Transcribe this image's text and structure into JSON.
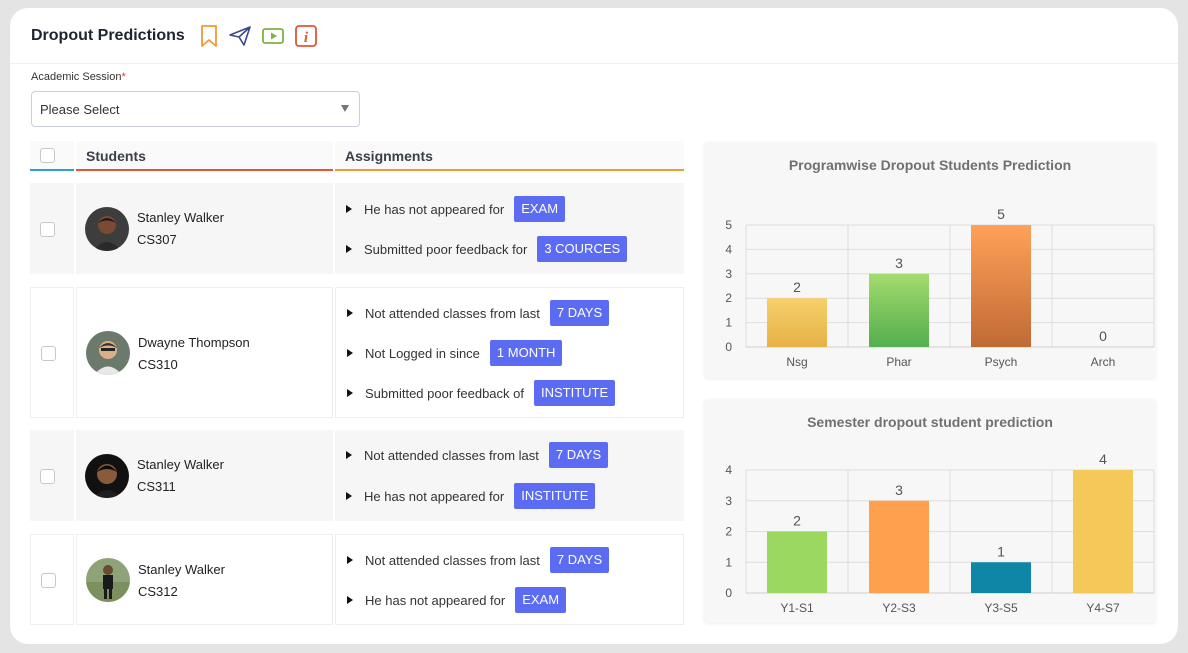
{
  "header": {
    "title": "Dropout Predictions",
    "icons": [
      "bookmark-icon",
      "send-icon",
      "video-play-icon",
      "info-icon"
    ],
    "icon_colors": {
      "bookmark": "#f29a2e",
      "send": "#3a4a8a",
      "video": "#7cb342",
      "info": "#e25635"
    }
  },
  "filter": {
    "label": "Academic Session",
    "required_mark": "*",
    "value": "Please Select"
  },
  "table": {
    "columns": [
      "Students",
      "Assignments"
    ],
    "rows": [
      {
        "name": "Stanley Walker",
        "id": "CS307",
        "items": [
          {
            "text": "He has not appeared for",
            "badge": "EXAM"
          },
          {
            "text": "Submitted poor feedback for",
            "badge": "3 COURCES"
          }
        ]
      },
      {
        "name": "Dwayne Thompson",
        "id": "CS310",
        "items": [
          {
            "text": "Not attended classes from last",
            "badge": "7 DAYS"
          },
          {
            "text": "Not Logged in since",
            "badge": "1 MONTH"
          },
          {
            "text": "Submitted poor feedback of",
            "badge": "INSTITUTE"
          }
        ]
      },
      {
        "name": "Stanley Walker",
        "id": "CS311",
        "items": [
          {
            "text": "Not attended classes from last",
            "badge": "7 DAYS"
          },
          {
            "text": "He has not appeared for",
            "badge": "INSTITUTE"
          }
        ]
      },
      {
        "name": "Stanley Walker",
        "id": "CS312",
        "items": [
          {
            "text": "Not attended classes from last",
            "badge": "7 DAYS"
          },
          {
            "text": "He has not appeared for",
            "badge": "EXAM"
          }
        ]
      }
    ]
  },
  "chart_data": [
    {
      "type": "bar",
      "title": "Programwise Dropout Students Prediction",
      "categories": [
        "Nsg",
        "Phar",
        "Psych",
        "Arch"
      ],
      "values": [
        2,
        3,
        5,
        0
      ],
      "ylim": [
        0,
        5
      ],
      "yticks": [
        0,
        1,
        2,
        3,
        4,
        5
      ],
      "grid": true,
      "colors": [
        [
          "#f5d06a",
          "#e7b247"
        ],
        [
          "#a3dc6e",
          "#55ae4f"
        ],
        [
          "#ffa158",
          "#c06a36"
        ],
        [
          "#f5c15b",
          "#e0a23f"
        ]
      ]
    },
    {
      "type": "bar",
      "title": "Semester dropout student prediction",
      "categories": [
        "Y1-S1",
        "Y2-S3",
        "Y3-S5",
        "Y4-S7"
      ],
      "values": [
        2,
        3,
        1,
        4
      ],
      "ylim": [
        0,
        4
      ],
      "yticks": [
        0,
        1,
        2,
        3,
        4
      ],
      "grid": true,
      "colors": [
        [
          "#9bd860",
          "#9bd860"
        ],
        [
          "#ffa04e",
          "#ffa04e"
        ],
        [
          "#0f86a6",
          "#0f86a6"
        ],
        [
          "#f5c85a",
          "#f5c85a"
        ]
      ]
    }
  ]
}
